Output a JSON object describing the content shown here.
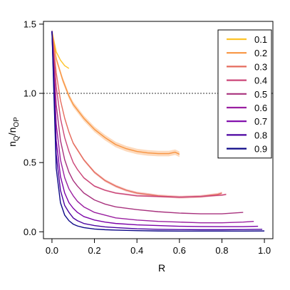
{
  "chart_data": {
    "type": "line",
    "xlabel": "R",
    "ylabel_main": "n",
    "ylabel_sub1": "Q",
    "ylabel_mid": "/n",
    "ylabel_sub2": "OP",
    "xlim": [
      -0.04,
      1.04
    ],
    "ylim": [
      -0.05,
      1.52
    ],
    "xticks": [
      0.0,
      0.2,
      0.4,
      0.6,
      0.8,
      1.0
    ],
    "xtick_labels": [
      "0.0",
      "0.2",
      "0.4",
      "0.6",
      "0.8",
      "1.0"
    ],
    "yticks": [
      0.0,
      0.5,
      1.0,
      1.5
    ],
    "ytick_labels": [
      "0.0",
      "0.5",
      "1.0",
      "1.5"
    ],
    "reference_line": {
      "y": 1.0,
      "style": "dotted"
    },
    "legend_position": "top-right",
    "series": [
      {
        "name": "0.1",
        "color": "#fdc328",
        "x": [
          0.0,
          0.02,
          0.04,
          0.06,
          0.08
        ],
        "y": [
          1.45,
          1.3,
          1.24,
          1.2,
          1.18
        ]
      },
      {
        "name": "0.2",
        "color": "#f89441",
        "band": 0.02,
        "x": [
          0.0,
          0.02,
          0.05,
          0.08,
          0.1,
          0.15,
          0.2,
          0.25,
          0.3,
          0.35,
          0.4,
          0.45,
          0.5,
          0.55,
          0.58,
          0.6
        ],
        "y": [
          1.45,
          1.25,
          1.1,
          0.98,
          0.92,
          0.82,
          0.74,
          0.68,
          0.63,
          0.6,
          0.58,
          0.57,
          0.565,
          0.565,
          0.575,
          0.56
        ]
      },
      {
        "name": "0.3",
        "color": "#e56b5d",
        "band": 0.01,
        "x": [
          0.0,
          0.02,
          0.04,
          0.06,
          0.08,
          0.1,
          0.15,
          0.2,
          0.25,
          0.3,
          0.35,
          0.4,
          0.45,
          0.5,
          0.6,
          0.7,
          0.75,
          0.78,
          0.8
        ],
        "y": [
          1.45,
          1.15,
          0.95,
          0.82,
          0.72,
          0.64,
          0.52,
          0.43,
          0.37,
          0.33,
          0.3,
          0.28,
          0.27,
          0.26,
          0.25,
          0.255,
          0.265,
          0.27,
          0.28
        ]
      },
      {
        "name": "0.4",
        "color": "#cb4778",
        "band": 0.006,
        "x": [
          0.0,
          0.02,
          0.04,
          0.06,
          0.08,
          0.1,
          0.12,
          0.15,
          0.2,
          0.25,
          0.3,
          0.35,
          0.4,
          0.5,
          0.6,
          0.7,
          0.8,
          0.82
        ],
        "y": [
          1.45,
          1.05,
          0.82,
          0.68,
          0.58,
          0.5,
          0.45,
          0.39,
          0.33,
          0.3,
          0.28,
          0.27,
          0.26,
          0.255,
          0.25,
          0.255,
          0.265,
          0.27
        ]
      },
      {
        "name": "0.5",
        "color": "#a8327e",
        "x": [
          0.0,
          0.02,
          0.04,
          0.06,
          0.08,
          0.1,
          0.12,
          0.15,
          0.2,
          0.25,
          0.3,
          0.4,
          0.5,
          0.6,
          0.7,
          0.8,
          0.9
        ],
        "y": [
          1.45,
          0.92,
          0.66,
          0.52,
          0.43,
          0.37,
          0.33,
          0.28,
          0.23,
          0.2,
          0.18,
          0.16,
          0.145,
          0.135,
          0.13,
          0.13,
          0.14
        ]
      },
      {
        "name": "0.6",
        "color": "#9a1fa0",
        "x": [
          0.0,
          0.02,
          0.04,
          0.06,
          0.08,
          0.1,
          0.12,
          0.15,
          0.2,
          0.25,
          0.3,
          0.4,
          0.5,
          0.6,
          0.7,
          0.8,
          0.9,
          0.95
        ],
        "y": [
          1.45,
          0.78,
          0.52,
          0.39,
          0.31,
          0.26,
          0.22,
          0.18,
          0.14,
          0.12,
          0.1,
          0.085,
          0.075,
          0.07,
          0.065,
          0.065,
          0.07,
          0.075
        ]
      },
      {
        "name": "0.7",
        "color": "#7b02a8",
        "x": [
          0.0,
          0.02,
          0.04,
          0.06,
          0.08,
          0.1,
          0.12,
          0.15,
          0.2,
          0.25,
          0.3,
          0.4,
          0.5,
          0.6,
          0.7,
          0.8,
          0.9,
          0.97
        ],
        "y": [
          1.45,
          0.66,
          0.4,
          0.28,
          0.21,
          0.17,
          0.14,
          0.11,
          0.085,
          0.07,
          0.06,
          0.05,
          0.045,
          0.04,
          0.038,
          0.037,
          0.037,
          0.04
        ]
      },
      {
        "name": "0.8",
        "color": "#4b03a1",
        "x": [
          0.0,
          0.02,
          0.04,
          0.06,
          0.08,
          0.1,
          0.12,
          0.15,
          0.2,
          0.25,
          0.3,
          0.4,
          0.5,
          0.6,
          0.7,
          0.8,
          0.9,
          0.99
        ],
        "y": [
          1.45,
          0.56,
          0.3,
          0.19,
          0.14,
          0.1,
          0.08,
          0.06,
          0.045,
          0.035,
          0.03,
          0.022,
          0.018,
          0.016,
          0.015,
          0.015,
          0.016,
          0.018
        ]
      },
      {
        "name": "0.9",
        "color": "#0d0887",
        "x": [
          0.0,
          0.02,
          0.04,
          0.06,
          0.08,
          0.1,
          0.12,
          0.15,
          0.2,
          0.25,
          0.3,
          0.4,
          0.5,
          0.6,
          0.7,
          0.8,
          0.9,
          1.0
        ],
        "y": [
          1.45,
          0.46,
          0.21,
          0.12,
          0.08,
          0.055,
          0.042,
          0.03,
          0.02,
          0.015,
          0.012,
          0.008,
          0.006,
          0.005,
          0.005,
          0.005,
          0.005,
          0.006
        ]
      }
    ]
  }
}
